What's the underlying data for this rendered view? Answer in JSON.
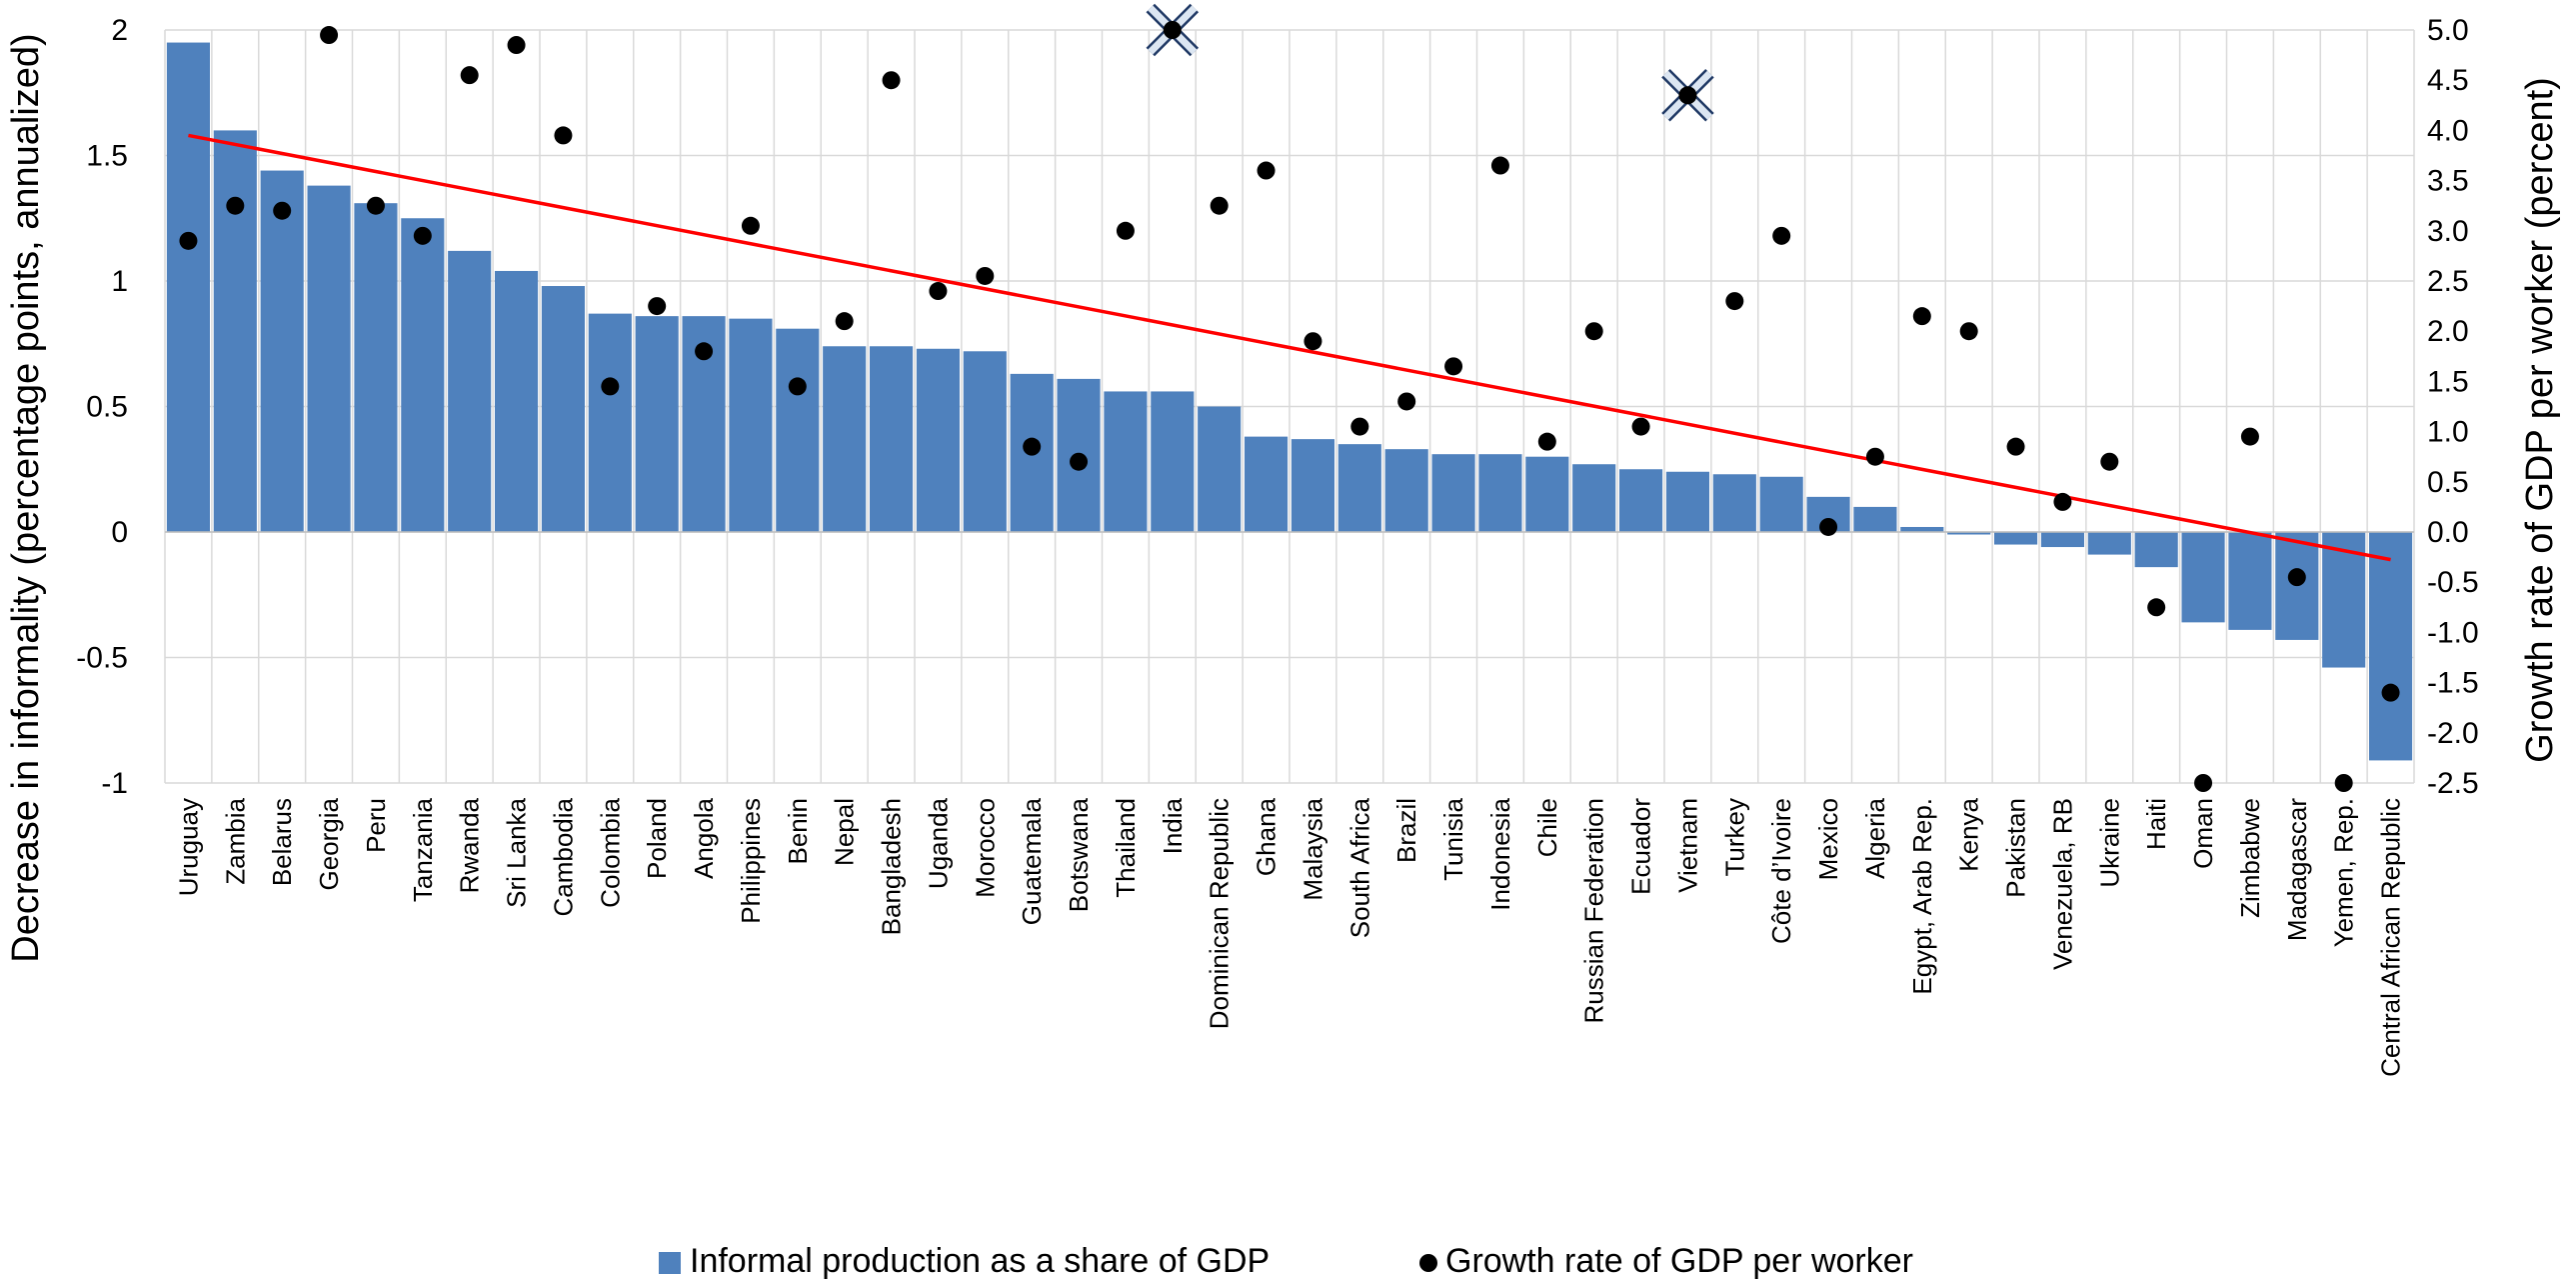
{
  "chart_data": {
    "type": "bar",
    "categories": [
      "Uruguay",
      "Zambia",
      "Belarus",
      "Georgia",
      "Peru",
      "Tanzania",
      "Rwanda",
      "Sri Lanka",
      "Cambodia",
      "Colombia",
      "Poland",
      "Angola",
      "Philippines",
      "Benin",
      "Nepal",
      "Bangladesh",
      "Uganda",
      "Morocco",
      "Guatemala",
      "Botswana",
      "Thailand",
      "India",
      "Dominican Republic",
      "Ghana",
      "Malaysia",
      "South Africa",
      "Brazil",
      "Tunisia",
      "Indonesia",
      "Chile",
      "Russian Federation",
      "Ecuador",
      "Vietnam",
      "Turkey",
      "Côte d’Ivoire",
      "Mexico",
      "Algeria",
      "Egypt, Arab Rep.",
      "Kenya",
      "Pakistan",
      "Venezuela, RB",
      "Ukraine",
      "Haiti",
      "Oman",
      "Zimbabwe",
      "Madagascar",
      "Yemen, Rep.",
      "Central African Republic"
    ],
    "series": [
      {
        "name": "Informal production as a share of GDP",
        "type": "bar",
        "axis": "left",
        "color": "#4F81BD",
        "values": [
          1.95,
          1.6,
          1.44,
          1.38,
          1.31,
          1.25,
          1.12,
          1.04,
          0.98,
          0.87,
          0.86,
          0.86,
          0.85,
          0.81,
          0.74,
          0.74,
          0.73,
          0.72,
          0.63,
          0.61,
          0.56,
          0.56,
          0.5,
          0.38,
          0.37,
          0.35,
          0.33,
          0.31,
          0.31,
          0.3,
          0.27,
          0.25,
          0.24,
          0.23,
          0.22,
          0.14,
          0.1,
          0.02,
          -0.01,
          -0.05,
          -0.06,
          -0.09,
          -0.14,
          -0.36,
          -0.39,
          -0.43,
          -0.54,
          -0.91
        ]
      },
      {
        "name": "Growth rate of GDP per worker",
        "type": "scatter",
        "axis": "right",
        "color": "#000000",
        "values": [
          2.9,
          3.25,
          3.2,
          4.95,
          3.25,
          2.95,
          4.55,
          4.85,
          3.95,
          1.45,
          2.25,
          1.8,
          3.05,
          1.45,
          2.1,
          4.5,
          2.4,
          2.55,
          0.85,
          0.7,
          3.0,
          5.0,
          3.25,
          3.6,
          1.9,
          1.05,
          1.3,
          1.65,
          3.65,
          0.9,
          2.0,
          1.05,
          4.35,
          2.3,
          2.95,
          0.05,
          0.75,
          2.15,
          2.0,
          0.85,
          0.3,
          0.7,
          -0.75,
          -2.5,
          0.95,
          -0.45,
          -2.5,
          -1.6
        ]
      }
    ],
    "trendline": {
      "color": "#FF0000",
      "start": 1.58,
      "end": -0.11
    },
    "highlighted": [
      "India",
      "Vietnam"
    ],
    "ylim_left": [
      -1,
      2
    ],
    "yticks_left": [
      "-1",
      "-0.5",
      "0",
      "0.5",
      "1",
      "1.5",
      "2"
    ],
    "ylim_right": [
      -2.5,
      5.0
    ],
    "yticks_right": [
      "-2.5",
      "-2.0",
      "-1.5",
      "-1.0",
      "-0.5",
      "0.0",
      "0.5",
      "1.0",
      "1.5",
      "2.0",
      "2.5",
      "3.0",
      "3.5",
      "4.0",
      "4.5",
      "5.0"
    ],
    "ylabel_left": "Decrease in informality (percentage points, annualized)",
    "ylabel_right": "Growth rate of GDP per worker (percent)",
    "grid": true,
    "legend_position": "bottom-center"
  },
  "legend": {
    "bar_label": "Informal production as a share of GDP",
    "dot_label": "Growth rate of GDP per worker"
  }
}
